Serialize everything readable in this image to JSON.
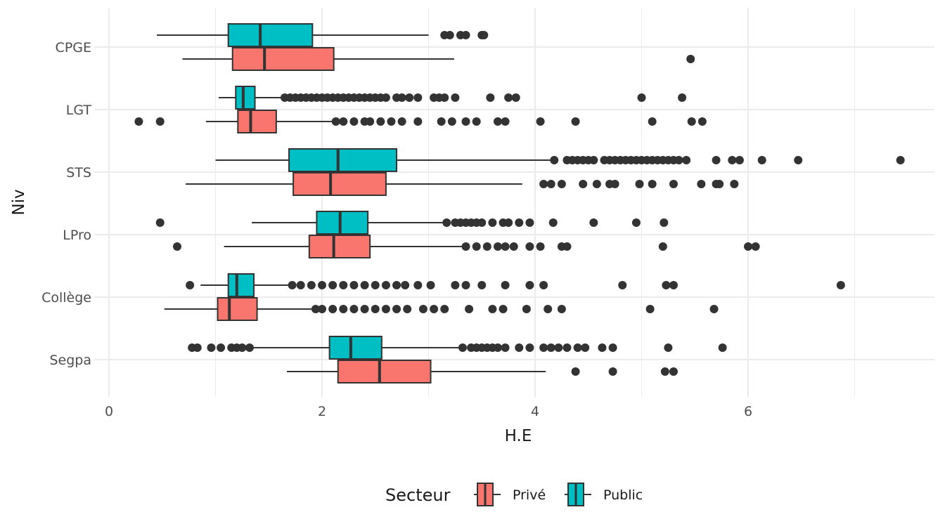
{
  "chart_data": {
    "type": "boxplot",
    "orientation": "horizontal",
    "xlabel": "H.E",
    "ylabel": "Niv",
    "xlim": [
      -0.15,
      7.7
    ],
    "x_ticks": [
      0,
      2,
      4,
      6
    ],
    "grid": true,
    "legend": {
      "title": "Secteur",
      "position": "bottom",
      "entries": [
        "Privé",
        "Public"
      ]
    },
    "categories": [
      "CPGE",
      "LGT",
      "STS",
      "LPro",
      "Collège",
      "Segpa"
    ],
    "colors": {
      "Privé": "#F8766D",
      "Public": "#00BFC4",
      "outline": "#333333",
      "grid": "#ebebeb",
      "background": "#ffffff"
    },
    "series": [
      {
        "name": "Public",
        "boxes": [
          {
            "category": "CPGE",
            "whisker_low": 0.45,
            "q1": 1.12,
            "median": 1.42,
            "q3": 1.91,
            "whisker_high": 3.0,
            "outliers": [
              3.15,
              3.2,
              3.3,
              3.35,
              3.5,
              3.52
            ]
          },
          {
            "category": "LGT",
            "whisker_low": 1.03,
            "q1": 1.19,
            "median": 1.26,
            "q3": 1.37,
            "whisker_high": 1.63,
            "outliers": [
              1.65,
              1.7,
              1.75,
              1.8,
              1.85,
              1.9,
              1.95,
              2.0,
              2.05,
              2.1,
              2.15,
              2.2,
              2.25,
              2.3,
              2.35,
              2.4,
              2.45,
              2.5,
              2.55,
              2.6,
              2.7,
              2.75,
              2.82,
              2.9,
              3.05,
              3.1,
              3.15,
              3.25,
              3.58,
              3.75,
              3.82,
              5.0,
              5.38
            ]
          },
          {
            "category": "STS",
            "whisker_low": 1.0,
            "q1": 1.69,
            "median": 2.15,
            "q3": 2.7,
            "whisker_high": 4.18,
            "outliers": [
              4.18,
              4.3,
              4.35,
              4.4,
              4.45,
              4.5,
              4.55,
              4.65,
              4.7,
              4.75,
              4.8,
              4.85,
              4.9,
              4.95,
              5.0,
              5.05,
              5.1,
              5.15,
              5.2,
              5.25,
              5.3,
              5.35,
              5.42,
              5.7,
              5.85,
              5.92,
              6.13,
              6.47,
              7.43
            ]
          },
          {
            "category": "LPro",
            "whisker_low": 1.34,
            "q1": 1.95,
            "median": 2.17,
            "q3": 2.43,
            "whisker_high": 3.15,
            "outliers": [
              0.48,
              3.17,
              3.25,
              3.3,
              3.35,
              3.4,
              3.45,
              3.5,
              3.6,
              3.7,
              3.75,
              3.85,
              3.95,
              4.17,
              4.55,
              4.95,
              5.21
            ]
          },
          {
            "category": "Collège",
            "whisker_low": 0.86,
            "q1": 1.12,
            "median": 1.2,
            "q3": 1.36,
            "whisker_high": 1.7,
            "outliers": [
              0.76,
              1.72,
              1.8,
              1.9,
              2.0,
              2.1,
              2.2,
              2.3,
              2.4,
              2.5,
              2.6,
              2.7,
              2.78,
              2.9,
              3.02,
              3.25,
              3.35,
              3.5,
              3.72,
              3.95,
              4.08,
              4.82,
              5.23,
              5.3,
              6.87
            ]
          },
          {
            "category": "Segpa",
            "whisker_low": 1.35,
            "q1": 2.07,
            "median": 2.27,
            "q3": 2.56,
            "whisker_high": 3.32,
            "outliers": [
              0.78,
              0.83,
              0.96,
              1.05,
              1.15,
              1.2,
              1.25,
              1.32,
              3.32,
              3.4,
              3.45,
              3.5,
              3.55,
              3.6,
              3.65,
              3.72,
              3.85,
              3.95,
              4.08,
              4.15,
              4.22,
              4.3,
              4.4,
              4.47,
              4.63,
              4.73,
              5.25,
              5.76
            ]
          }
        ]
      },
      {
        "name": "Privé",
        "boxes": [
          {
            "category": "CPGE",
            "whisker_low": 0.69,
            "q1": 1.16,
            "median": 1.46,
            "q3": 2.11,
            "whisker_high": 3.24,
            "outliers": [
              5.46
            ]
          },
          {
            "category": "LGT",
            "whisker_low": 0.91,
            "q1": 1.21,
            "median": 1.33,
            "q3": 1.57,
            "whisker_high": 2.12,
            "outliers": [
              0.28,
              0.48,
              2.13,
              2.2,
              2.3,
              2.4,
              2.45,
              2.55,
              2.65,
              2.75,
              2.9,
              3.12,
              3.22,
              3.35,
              3.45,
              3.65,
              3.72,
              4.05,
              4.38,
              5.1,
              5.47,
              5.57
            ]
          },
          {
            "category": "STS",
            "whisker_low": 0.72,
            "q1": 1.73,
            "median": 2.08,
            "q3": 2.6,
            "whisker_high": 3.88,
            "outliers": [
              4.08,
              4.15,
              4.25,
              4.45,
              4.58,
              4.7,
              4.75,
              4.98,
              5.1,
              5.3,
              5.56,
              5.7,
              5.73,
              5.87
            ]
          },
          {
            "category": "LPro",
            "whisker_low": 1.08,
            "q1": 1.88,
            "median": 2.11,
            "q3": 2.45,
            "whisker_high": 3.32,
            "outliers": [
              0.64,
              3.35,
              3.45,
              3.55,
              3.65,
              3.72,
              3.8,
              3.95,
              4.05,
              4.25,
              4.3,
              5.2,
              6.0,
              6.07
            ]
          },
          {
            "category": "Collège",
            "whisker_low": 0.52,
            "q1": 1.02,
            "median": 1.13,
            "q3": 1.39,
            "whisker_high": 1.92,
            "outliers": [
              1.94,
              2.0,
              2.1,
              2.2,
              2.3,
              2.4,
              2.5,
              2.6,
              2.7,
              2.8,
              2.95,
              3.05,
              3.15,
              3.38,
              3.6,
              3.7,
              3.92,
              4.12,
              4.25,
              5.08,
              5.68
            ]
          },
          {
            "category": "Segpa",
            "whisker_low": 1.67,
            "q1": 2.15,
            "median": 2.54,
            "q3": 3.02,
            "whisker_high": 4.1,
            "outliers": [
              4.38,
              4.73,
              5.22,
              5.3
            ]
          }
        ]
      }
    ]
  }
}
